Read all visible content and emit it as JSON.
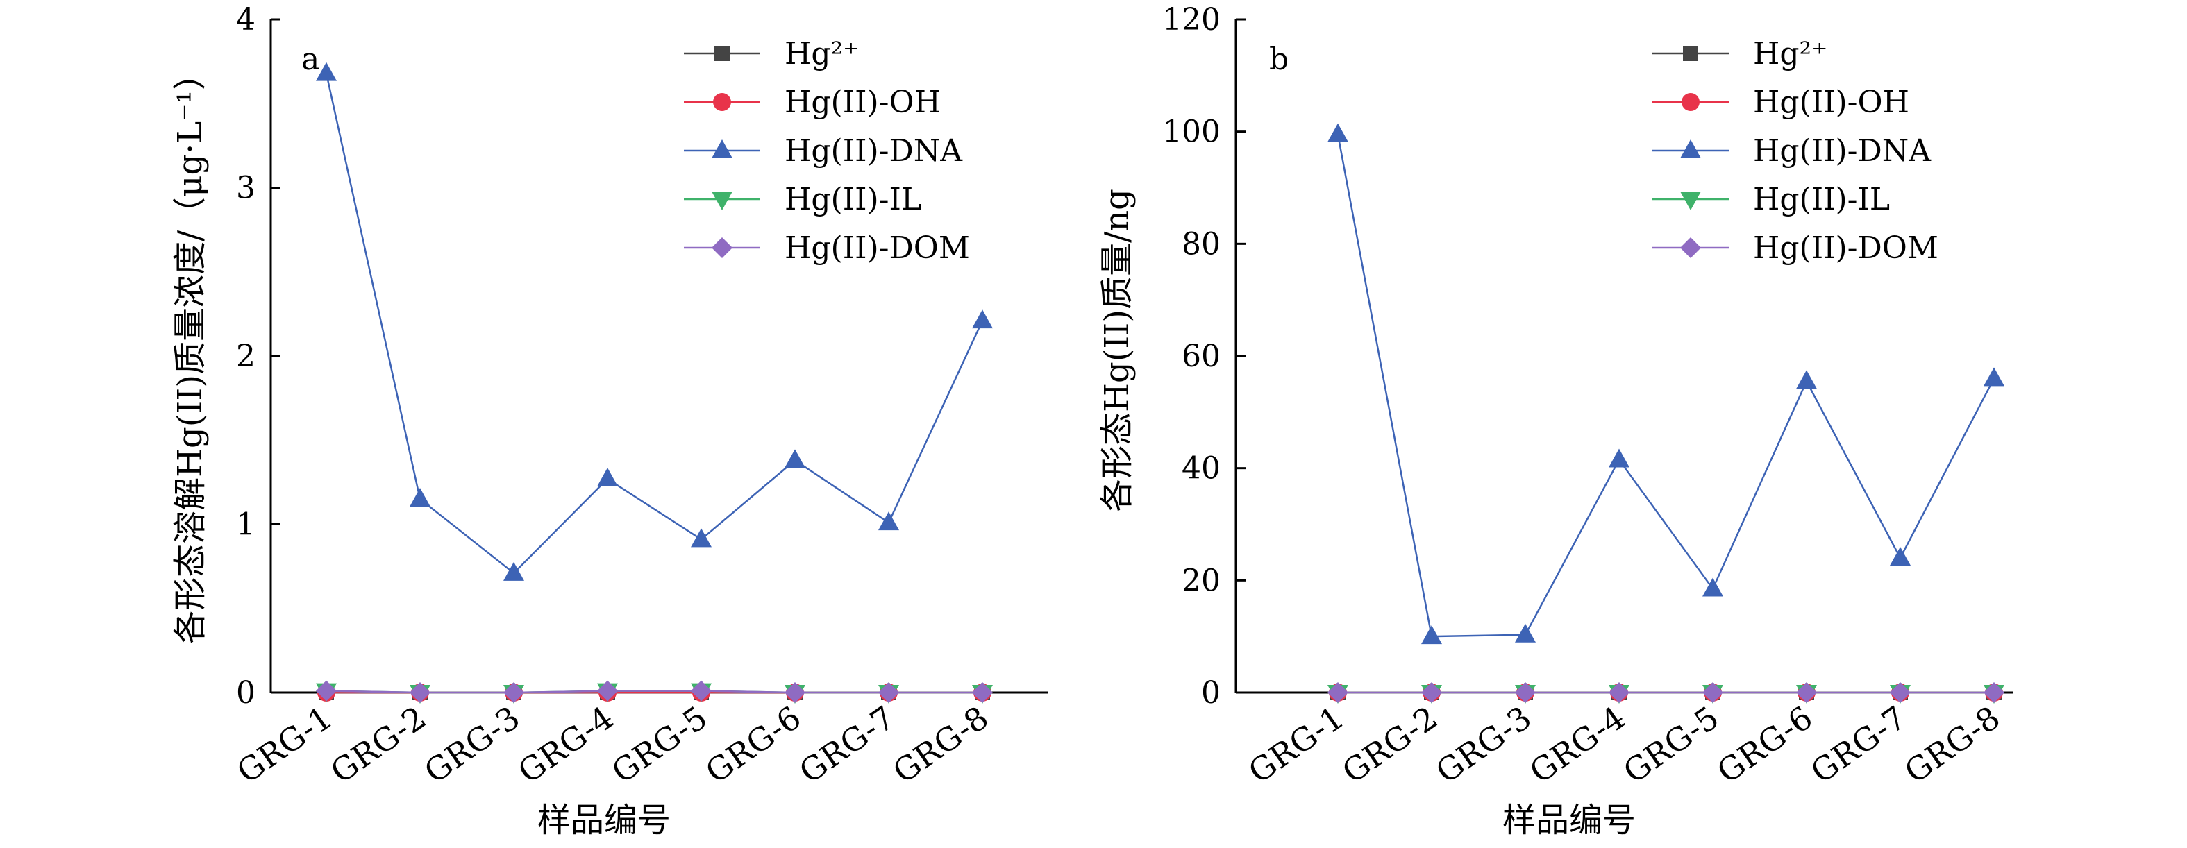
{
  "chart_data": [
    {
      "type": "line",
      "panel_label": "a",
      "categories": [
        "GRG-1",
        "GRG-2",
        "GRG-3",
        "GRG-4",
        "GRG-5",
        "GRG-6",
        "GRG-7",
        "GRG-8"
      ],
      "xlabel": "样品编号",
      "ylabel": "各形态溶解Hg(II)质量浓度/（μg·L⁻¹）",
      "ylim": [
        0,
        4
      ],
      "yticks": [
        0,
        1,
        2,
        3,
        4
      ],
      "legend_position": "top-right",
      "series": [
        {
          "name": "Hg²⁺",
          "marker": "square",
          "color": "#444444",
          "values": [
            0.0,
            0.0,
            0.0,
            0.0,
            0.0,
            0.0,
            0.0,
            0.0
          ]
        },
        {
          "name": "Hg(II)-OH",
          "marker": "circle",
          "color": "#e8334a",
          "values": [
            0.0,
            0.0,
            0.0,
            0.0,
            0.0,
            0.0,
            0.0,
            0.0
          ]
        },
        {
          "name": "Hg(II)-DNA",
          "marker": "triangle-up",
          "color": "#3d63b5",
          "values": [
            3.68,
            1.15,
            0.71,
            1.27,
            0.91,
            1.38,
            1.01,
            2.21
          ]
        },
        {
          "name": "Hg(II)-IL",
          "marker": "triangle-down",
          "color": "#3fb26a",
          "values": [
            0.01,
            0.0,
            0.0,
            0.01,
            0.01,
            0.0,
            0.0,
            0.0
          ]
        },
        {
          "name": "Hg(II)-DOM",
          "marker": "diamond",
          "color": "#8f6bc2",
          "values": [
            0.01,
            0.0,
            0.0,
            0.01,
            0.01,
            0.0,
            0.0,
            0.0
          ]
        }
      ]
    },
    {
      "type": "line",
      "panel_label": "b",
      "categories": [
        "GRG-1",
        "GRG-2",
        "GRG-3",
        "GRG-4",
        "GRG-5",
        "GRG-6",
        "GRG-7",
        "GRG-8"
      ],
      "xlabel": "样品编号",
      "ylabel": "各形态Hg(II)质量/ng",
      "ylim": [
        0,
        120
      ],
      "yticks": [
        0,
        20,
        40,
        60,
        80,
        100,
        120
      ],
      "legend_position": "top-right",
      "series": [
        {
          "name": "Hg²⁺",
          "marker": "square",
          "color": "#444444",
          "values": [
            0.0,
            0.0,
            0.0,
            0.0,
            0.0,
            0.0,
            0.0,
            0.0
          ]
        },
        {
          "name": "Hg(II)-OH",
          "marker": "circle",
          "color": "#e8334a",
          "values": [
            0.0,
            0.0,
            0.0,
            0.0,
            0.0,
            0.0,
            0.0,
            0.0
          ]
        },
        {
          "name": "Hg(II)-DNA",
          "marker": "triangle-up",
          "color": "#3d63b5",
          "values": [
            99.5,
            10.0,
            10.3,
            41.5,
            18.5,
            55.5,
            24.0,
            56.0
          ]
        },
        {
          "name": "Hg(II)-IL",
          "marker": "triangle-down",
          "color": "#3fb26a",
          "values": [
            0.0,
            0.0,
            0.0,
            0.0,
            0.0,
            0.0,
            0.0,
            0.0
          ]
        },
        {
          "name": "Hg(II)-DOM",
          "marker": "diamond",
          "color": "#8f6bc2",
          "values": [
            0.0,
            0.0,
            0.0,
            0.0,
            0.0,
            0.0,
            0.0,
            0.0
          ]
        }
      ]
    }
  ]
}
